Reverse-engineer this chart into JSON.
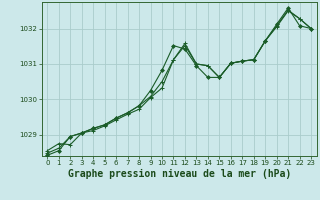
{
  "title": "Graphe pression niveau de la mer (hPa)",
  "background_color": "#cce8ea",
  "grid_color": "#aacccc",
  "line_color1": "#1a5c28",
  "line_color2": "#1a5c28",
  "line_color3": "#1a5c28",
  "ylim": [
    1028.4,
    1032.75
  ],
  "xlim": [
    -0.5,
    23.5
  ],
  "yticks": [
    1029,
    1030,
    1031,
    1032
  ],
  "xticks": [
    0,
    1,
    2,
    3,
    4,
    5,
    6,
    7,
    8,
    9,
    10,
    11,
    12,
    13,
    14,
    15,
    16,
    17,
    18,
    19,
    20,
    21,
    22,
    23
  ],
  "series1_x": [
    0,
    1,
    2,
    3,
    4,
    5,
    6,
    7,
    8,
    9,
    10,
    11,
    12,
    13,
    14,
    15,
    16,
    17,
    18,
    19,
    20,
    21,
    22,
    23
  ],
  "series1_y": [
    1028.55,
    1028.75,
    1028.72,
    1029.05,
    1029.12,
    1029.25,
    1029.42,
    1029.58,
    1029.72,
    1030.05,
    1030.32,
    1031.12,
    1031.52,
    1031.0,
    1030.95,
    1030.62,
    1031.02,
    1031.08,
    1031.12,
    1031.65,
    1032.05,
    1032.5,
    1032.28,
    1032.0
  ],
  "series2_x": [
    0,
    1,
    2,
    3,
    4,
    5,
    6,
    7,
    8,
    9,
    10,
    11,
    12,
    13,
    14,
    15,
    16,
    17,
    18,
    19,
    20,
    21,
    22,
    23
  ],
  "series2_y": [
    1028.48,
    1028.62,
    1028.95,
    1029.05,
    1029.18,
    1029.28,
    1029.47,
    1029.62,
    1029.82,
    1030.08,
    1030.5,
    1031.12,
    1031.58,
    1031.0,
    1030.95,
    1030.62,
    1031.02,
    1031.08,
    1031.12,
    1031.65,
    1032.08,
    1032.52,
    1032.28,
    1032.0
  ],
  "series3_x": [
    0,
    1,
    2,
    3,
    4,
    5,
    6,
    7,
    8,
    9,
    10,
    11,
    12,
    13,
    14,
    15,
    16,
    17,
    18,
    19,
    20,
    21,
    22,
    23
  ],
  "series3_y": [
    1028.42,
    1028.55,
    1028.95,
    1029.05,
    1029.18,
    1029.28,
    1029.47,
    1029.62,
    1029.82,
    1030.25,
    1030.82,
    1031.52,
    1031.42,
    1030.95,
    1030.62,
    1030.62,
    1031.02,
    1031.08,
    1031.12,
    1031.65,
    1032.12,
    1032.58,
    1032.08,
    1032.0
  ],
  "title_fontsize": 7,
  "tick_fontsize": 5,
  "tick_color": "#1a4a1a",
  "axis_color": "#336633"
}
